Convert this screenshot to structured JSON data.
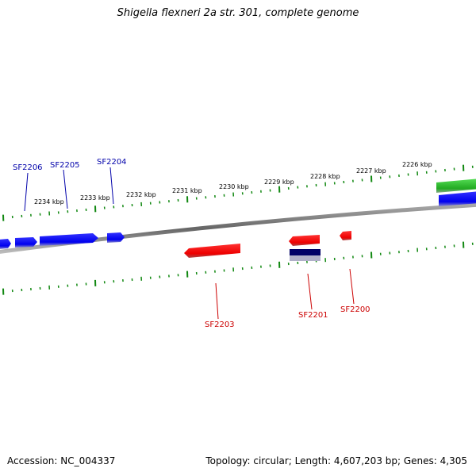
{
  "title": "Shigella flexneri 2a str. 301, complete genome",
  "footer": {
    "accession": "Accession: NC_004337",
    "summary": "Topology: circular; Length: 4,607,203 bp; Genes: 4,305"
  },
  "kbp_labels": [
    "2234 kbp",
    "2233 kbp",
    "2232 kbp",
    "2231 kbp",
    "2230 kbp",
    "2229 kbp",
    "2228 kbp",
    "2227 kbp",
    "2226 kbp"
  ],
  "genes_forward": [
    {
      "name": "SF2206"
    },
    {
      "name": "SF2205"
    },
    {
      "name": "SF2204"
    }
  ],
  "genes_reverse": [
    {
      "name": "SF2203"
    },
    {
      "name": "SF2201"
    },
    {
      "name": "SF2200"
    }
  ],
  "colors": {
    "forward_gene": "#0000ff",
    "reverse_gene": "#ff0000",
    "rna_gene": "#22bb22",
    "tick": "#118811",
    "backbone": "#777777",
    "forward_label": "#0000aa",
    "reverse_label": "#cc0000",
    "navy_feature": "#000066"
  }
}
